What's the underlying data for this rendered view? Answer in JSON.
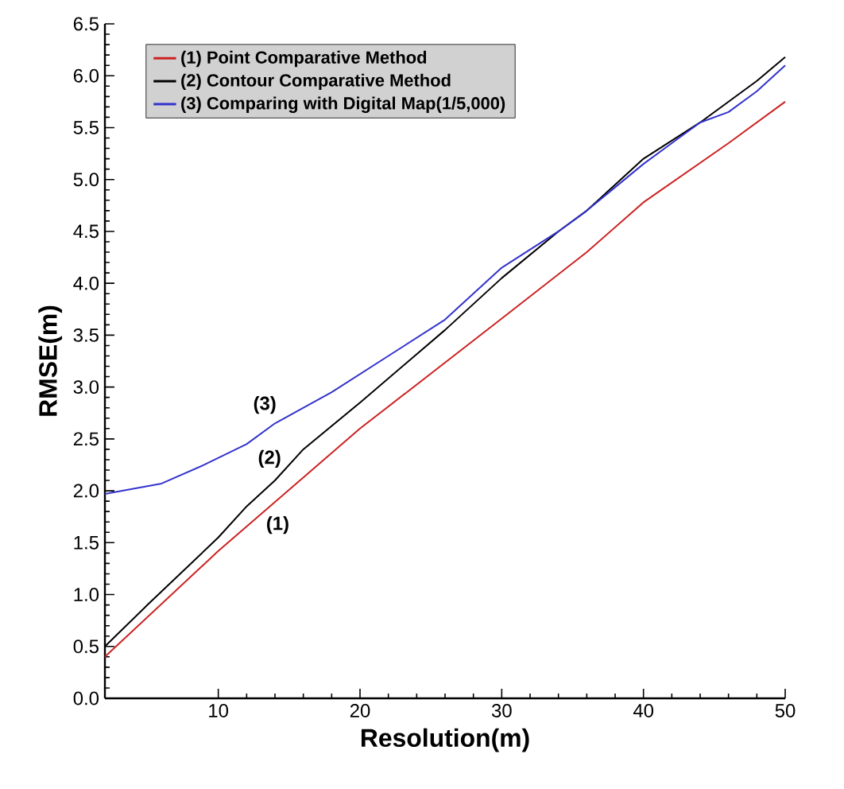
{
  "chart_data": {
    "type": "line",
    "xlabel": "Resolution(m)",
    "ylabel": "RMSE(m)",
    "xlim": [
      2,
      50
    ],
    "xticks": [
      10,
      20,
      30,
      40,
      50
    ],
    "ylim": [
      0,
      6.5
    ],
    "yticks": [
      {
        "value": 0,
        "label": "0.0"
      },
      {
        "value": 0.5,
        "label": "0.5"
      },
      {
        "value": 1,
        "label": "1.0"
      },
      {
        "value": 1.5,
        "label": "1.5"
      },
      {
        "value": 2,
        "label": "2.0"
      },
      {
        "value": 2.5,
        "label": "2.5"
      },
      {
        "value": 3,
        "label": "3.0"
      },
      {
        "value": 3.5,
        "label": "3.5"
      },
      {
        "value": 4,
        "label": "4.0"
      },
      {
        "value": 4.5,
        "label": "4.5"
      },
      {
        "value": 5,
        "label": "5.0"
      },
      {
        "value": 5.5,
        "label": "5.5"
      },
      {
        "value": 6,
        "label": "6.0"
      },
      {
        "value": 6.5,
        "label": "6.5"
      }
    ],
    "series": [
      {
        "name": "(1) Point Comparative Method",
        "color": "#cc2222",
        "x": [
          2,
          10,
          20,
          30,
          36,
          40,
          46,
          50
        ],
        "values": [
          0.4,
          1.42,
          2.6,
          3.66,
          4.3,
          4.78,
          5.35,
          5.75
        ]
      },
      {
        "name": "(2) Contour Comparative Method",
        "color": "#000000",
        "x": [
          2,
          5,
          10,
          12,
          14,
          16,
          20,
          26,
          30,
          34,
          36,
          38,
          40,
          44,
          48,
          50
        ],
        "values": [
          0.5,
          0.9,
          1.55,
          1.85,
          2.1,
          2.4,
          2.85,
          3.55,
          4.05,
          4.5,
          4.7,
          4.95,
          5.2,
          5.55,
          5.95,
          6.18
        ]
      },
      {
        "name": "(3) Comparing with Digital Map(1/5,000)",
        "color": "#3333cc",
        "x": [
          2,
          6,
          9,
          12,
          14,
          18,
          22,
          26,
          30,
          34,
          36,
          40,
          42,
          44,
          46,
          48,
          50
        ],
        "values": [
          1.97,
          2.07,
          2.25,
          2.45,
          2.65,
          2.95,
          3.3,
          3.65,
          4.15,
          4.5,
          4.7,
          5.15,
          5.35,
          5.55,
          5.65,
          5.85,
          6.1
        ]
      }
    ],
    "annotations": [
      "(3)",
      "(2)",
      "(1)"
    ],
    "legend": "top left",
    "grid": false,
    "marker": "none",
    "line_style": "solid"
  }
}
